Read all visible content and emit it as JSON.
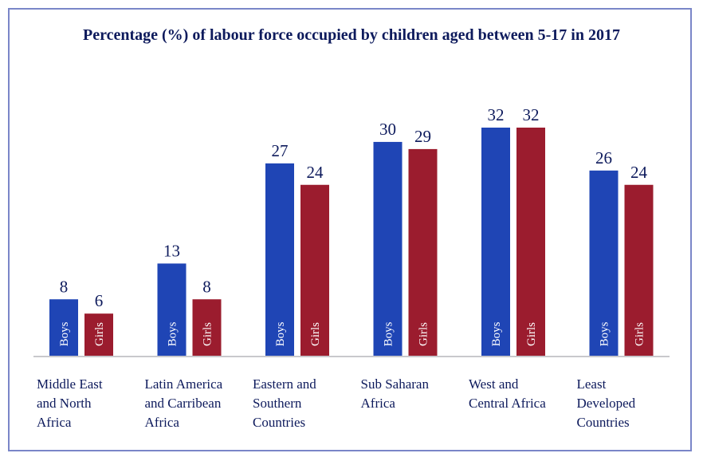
{
  "chart_data": {
    "type": "bar",
    "title": "Percentage (%) of labour force occupied by children aged between 5-17 in 2017",
    "categories": [
      [
        "Middle East",
        "and North",
        "Africa"
      ],
      [
        "Latin America",
        "and Carribean",
        "Africa"
      ],
      [
        "Eastern and",
        "Southern",
        "Countries"
      ],
      [
        "Sub Saharan",
        "Africa"
      ],
      [
        "West and",
        "Central Africa"
      ],
      [
        "Least",
        "Developed",
        "Countries"
      ]
    ],
    "series": [
      {
        "name": "Boys",
        "color": "#1f45b5",
        "values": [
          8,
          13,
          27,
          30,
          32,
          26
        ]
      },
      {
        "name": "Girls",
        "color": "#9b1c2e",
        "values": [
          6,
          8,
          24,
          29,
          32,
          24
        ]
      }
    ],
    "xlabel": "",
    "ylabel": "",
    "ylim": [
      0,
      32
    ],
    "grid": false,
    "legend": "none"
  }
}
